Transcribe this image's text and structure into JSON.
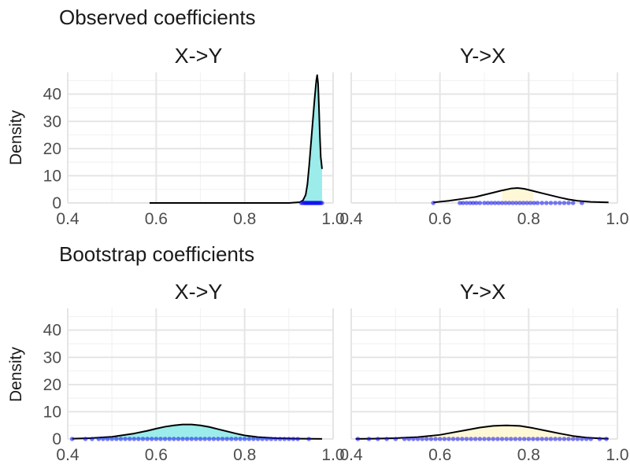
{
  "colors": {
    "xy_fill": "#9BECEA",
    "yx_fill": "#FFF8D6",
    "points": "#1010EE",
    "curve": "#000000",
    "grid_major": "#e5e5e5",
    "grid_minor": "#f2f2f2"
  },
  "chart_data": [
    {
      "type": "area",
      "title": "Observed coefficients",
      "panel_title": "X->Y",
      "xlabel": "",
      "ylabel": "Density",
      "xlim": [
        0.4,
        1.0
      ],
      "ylim": [
        0,
        48
      ],
      "x_ticks": [
        0.4,
        0.6,
        0.8,
        1.0
      ],
      "x_tick_labels": [
        "0.4",
        "0.6",
        "0.8",
        "1.0"
      ],
      "y_ticks": [
        0,
        10,
        20,
        30,
        40
      ],
      "y_tick_labels": [
        "0",
        "10",
        "20",
        "30",
        "40"
      ],
      "fill_color": "#9BECEA",
      "fill_range": [
        0.932,
        0.975
      ],
      "density": {
        "x": [
          0.585,
          0.7,
          0.8,
          0.9,
          0.925,
          0.932,
          0.938,
          0.942,
          0.946,
          0.95,
          0.954,
          0.958,
          0.962,
          0.964,
          0.966,
          0.968,
          0.97,
          0.972,
          0.975
        ],
        "y": [
          0,
          0,
          0,
          0,
          0.3,
          1.0,
          3.0,
          7.0,
          14.0,
          22.0,
          30.0,
          38.0,
          45.0,
          47.0,
          44.0,
          35.0,
          25.0,
          17.0,
          12.5
        ]
      },
      "points": {
        "x": [
          0.928,
          0.931,
          0.934,
          0.936,
          0.938,
          0.94,
          0.942,
          0.944,
          0.946,
          0.948,
          0.95,
          0.952,
          0.954,
          0.956,
          0.958,
          0.96,
          0.962,
          0.964,
          0.966,
          0.968,
          0.97,
          0.972,
          0.975
        ],
        "y": 0
      }
    },
    {
      "type": "area",
      "title": "",
      "panel_title": "Y->X",
      "xlabel": "",
      "ylabel": "",
      "xlim": [
        0.4,
        1.0
      ],
      "ylim": [
        0,
        48
      ],
      "x_ticks": [
        0.4,
        0.6,
        0.8,
        1.0
      ],
      "x_tick_labels": [
        "0.4",
        "0.6",
        "0.8",
        "1.0"
      ],
      "y_ticks": [
        0,
        10,
        20,
        30,
        40
      ],
      "y_tick_labels": [
        "0",
        "10",
        "20",
        "30",
        "40"
      ],
      "fill_color": "#FFF8D6",
      "fill_range": [
        0.74,
        0.81
      ],
      "density": {
        "x": [
          0.585,
          0.62,
          0.65,
          0.68,
          0.7,
          0.72,
          0.74,
          0.76,
          0.775,
          0.79,
          0.81,
          0.83,
          0.85,
          0.87,
          0.89,
          0.91,
          0.94,
          0.98
        ],
        "y": [
          0.2,
          0.8,
          1.5,
          2.2,
          3.0,
          3.8,
          4.6,
          5.3,
          5.5,
          5.2,
          4.4,
          3.6,
          2.8,
          2.0,
          1.3,
          0.8,
          0.4,
          0.2
        ]
      },
      "points": {
        "x": [
          0.585,
          0.645,
          0.652,
          0.66,
          0.668,
          0.675,
          0.682,
          0.69,
          0.7,
          0.708,
          0.716,
          0.724,
          0.732,
          0.74,
          0.748,
          0.756,
          0.764,
          0.772,
          0.78,
          0.788,
          0.796,
          0.804,
          0.812,
          0.82,
          0.83,
          0.84,
          0.85,
          0.86,
          0.87,
          0.88,
          0.89,
          0.9,
          0.92
        ],
        "y": 0
      }
    },
    {
      "type": "area",
      "title": "Bootstrap coefficients",
      "panel_title": "X->Y",
      "xlabel": "",
      "ylabel": "Density",
      "xlim": [
        0.4,
        1.0
      ],
      "ylim": [
        0,
        48
      ],
      "x_ticks": [
        0.4,
        0.6,
        0.8,
        1.0
      ],
      "x_tick_labels": [
        "0.4",
        "0.6",
        "0.8",
        "1.0"
      ],
      "y_ticks": [
        0,
        10,
        20,
        30,
        40
      ],
      "y_tick_labels": [
        "0",
        "10",
        "20",
        "30",
        "40"
      ],
      "fill_color": "#9BECEA",
      "fill_range": [
        0.41,
        0.975
      ],
      "density": {
        "x": [
          0.41,
          0.45,
          0.5,
          0.55,
          0.58,
          0.6,
          0.62,
          0.64,
          0.66,
          0.68,
          0.7,
          0.72,
          0.74,
          0.76,
          0.78,
          0.8,
          0.83,
          0.87,
          0.92,
          0.975
        ],
        "y": [
          0.1,
          0.3,
          0.8,
          2.0,
          3.0,
          3.8,
          4.5,
          5.0,
          5.3,
          5.3,
          5.0,
          4.4,
          3.6,
          2.8,
          2.0,
          1.3,
          0.7,
          0.3,
          0.1,
          0.05
        ]
      },
      "points": {
        "x": [
          0.41,
          0.44,
          0.455,
          0.47,
          0.48,
          0.49,
          0.5,
          0.51,
          0.52,
          0.53,
          0.54,
          0.55,
          0.56,
          0.57,
          0.58,
          0.59,
          0.6,
          0.61,
          0.62,
          0.63,
          0.64,
          0.65,
          0.66,
          0.67,
          0.68,
          0.69,
          0.7,
          0.71,
          0.72,
          0.73,
          0.74,
          0.75,
          0.76,
          0.77,
          0.78,
          0.79,
          0.8,
          0.81,
          0.82,
          0.83,
          0.84,
          0.85,
          0.86,
          0.87,
          0.88,
          0.89,
          0.9,
          0.91,
          0.92,
          0.945
        ],
        "y": 0
      }
    },
    {
      "type": "area",
      "title": "",
      "panel_title": "Y->X",
      "xlabel": "",
      "ylabel": "",
      "xlim": [
        0.4,
        1.0
      ],
      "ylim": [
        0,
        48
      ],
      "x_ticks": [
        0.4,
        0.6,
        0.8,
        1.0
      ],
      "x_tick_labels": [
        "0.4",
        "0.6",
        "0.8",
        "1.0"
      ],
      "y_ticks": [
        0,
        10,
        20,
        30,
        40
      ],
      "y_tick_labels": [
        "0",
        "10",
        "20",
        "30",
        "40"
      ],
      "fill_color": "#FFF8D6",
      "fill_range": [
        0.41,
        0.98
      ],
      "density": {
        "x": [
          0.41,
          0.45,
          0.5,
          0.55,
          0.6,
          0.63,
          0.66,
          0.69,
          0.72,
          0.75,
          0.78,
          0.81,
          0.84,
          0.87,
          0.9,
          0.93,
          0.96,
          0.98
        ],
        "y": [
          0.05,
          0.1,
          0.3,
          0.7,
          1.5,
          2.4,
          3.3,
          4.2,
          4.8,
          5.0,
          4.8,
          4.0,
          3.0,
          2.0,
          1.1,
          0.5,
          0.2,
          0.1
        ]
      },
      "points": {
        "x": [
          0.415,
          0.44,
          0.46,
          0.48,
          0.5,
          0.52,
          0.53,
          0.54,
          0.55,
          0.56,
          0.57,
          0.58,
          0.59,
          0.6,
          0.61,
          0.62,
          0.63,
          0.64,
          0.65,
          0.66,
          0.67,
          0.68,
          0.69,
          0.7,
          0.71,
          0.72,
          0.73,
          0.74,
          0.75,
          0.76,
          0.77,
          0.78,
          0.79,
          0.8,
          0.81,
          0.82,
          0.83,
          0.84,
          0.85,
          0.86,
          0.87,
          0.88,
          0.89,
          0.9,
          0.91,
          0.92,
          0.93,
          0.94,
          0.96,
          0.975
        ],
        "y": 0
      }
    }
  ]
}
